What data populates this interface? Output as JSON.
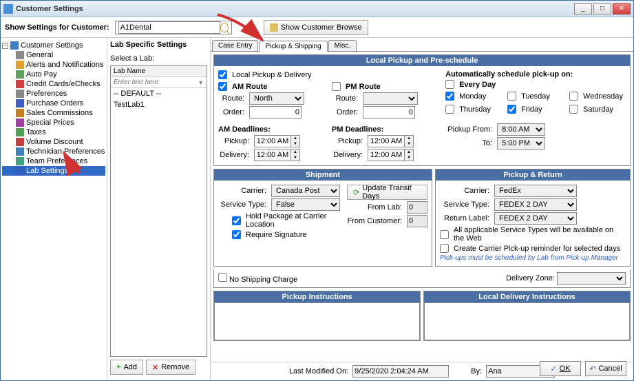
{
  "window": {
    "title": "Customer Settings"
  },
  "toolbar": {
    "show_label": "Show Settings for Customer:",
    "customer": "A1Dental",
    "browse_btn": "Show Customer Browse"
  },
  "tree": {
    "root": "Customer Settings",
    "items": [
      "General",
      "Alerts and Notifications",
      "Auto Pay",
      "Credit Cards/eChecks",
      "Preferences",
      "Purchase Orders",
      "Sales Commissions",
      "Special Prices",
      "Taxes",
      "Volume Discount",
      "Technician Preferences",
      "Team Preferences",
      "Lab Settings"
    ],
    "selected": 12,
    "icon_colors": [
      "#888",
      "#e0a030",
      "#60a060",
      "#d04040",
      "#888",
      "#4060c0",
      "#c08020",
      "#a040a0",
      "#50a050",
      "#c04040",
      "#4080c0",
      "#40a080",
      "#3060c0"
    ]
  },
  "lab": {
    "header": "Lab Specific Settings",
    "select_label": "Select a Lab:",
    "col": "Lab Name",
    "filter_ph": "Enter text here",
    "items": [
      "-- DEFAULT --",
      "TestLab1"
    ],
    "add": "Add",
    "remove": "Remove"
  },
  "tabs": [
    "Case Entry",
    "Pickup & Shipping",
    "Misc."
  ],
  "active_tab": 1,
  "pickup_section": {
    "title": "Local Pickup and Pre-schedule",
    "local_chk": "Local Pickup & Delivery",
    "am_route": "AM Route",
    "pm_route": "PM Route",
    "route_lbl": "Route:",
    "order_lbl": "Order:",
    "am_route_val": "North",
    "pm_route_val": "",
    "am_order": "0",
    "pm_order": "0",
    "am_dead": "AM Deadlines:",
    "pm_dead": "PM Deadlines:",
    "pickup_lbl": "Pickup:",
    "delivery_lbl": "Delivery:",
    "am_pickup": "12:00 AM",
    "am_delivery": "12:00 AM",
    "pm_pickup": "12:00 AM",
    "pm_delivery": "12:00 AM",
    "auto_lbl": "Automatically schedule pick-up on:",
    "every": "Every Day",
    "days": [
      "Monday",
      "Tuesday",
      "Wednesday",
      "Thursday",
      "Friday",
      "Saturday"
    ],
    "days_checked": [
      true,
      false,
      false,
      false,
      true,
      false
    ],
    "from_lbl": "Pickup From:",
    "to_lbl": "To:",
    "from_val": "8:00 AM",
    "to_val": "5:00 PM"
  },
  "shipment": {
    "title": "Shipment",
    "carrier_lbl": "Carrier:",
    "carrier": "Canada Post",
    "service_lbl": "Service Type:",
    "service": "False",
    "update_btn": "Update Transit Days",
    "from_lab_lbl": "From Lab:",
    "from_lab": "0",
    "from_cust_lbl": "From Customer:",
    "from_cust": "0",
    "hold": "Hold Package at Carrier Location",
    "sig": "Require Signature"
  },
  "pickup_return": {
    "title": "Pickup & Return",
    "carrier_lbl": "Carrier:",
    "carrier": "FedEx",
    "service_lbl": "Service Type:",
    "service": "FEDEX 2 DAY",
    "return_lbl": "Return Label:",
    "return": "FEDEX 2 DAY",
    "web_chk": "All applicable Service Types will be available on the Web",
    "reminder_chk": "Create Carrier Pick-up reminder for selected days",
    "note": "Pick-ups must be scheduled by Lab from Pick-up Manager"
  },
  "ship_opts": {
    "no_charge": "No Shipping Charge",
    "zone_lbl": "Delivery Zone:"
  },
  "instr": {
    "pickup": "Pickup Instructions",
    "delivery": "Local Delivery Instructions"
  },
  "footer": {
    "mod_lbl": "Last Modified On:",
    "mod_val": "9/25/2020 2:04:24 AM",
    "by_lbl": "By:",
    "by_val": "Ana"
  },
  "dlg": {
    "ok": "OK",
    "cancel": "Cancel"
  },
  "colors": {
    "section_header": "#4a6fa5",
    "selection": "#316ac5",
    "arrow": "#d03030"
  }
}
